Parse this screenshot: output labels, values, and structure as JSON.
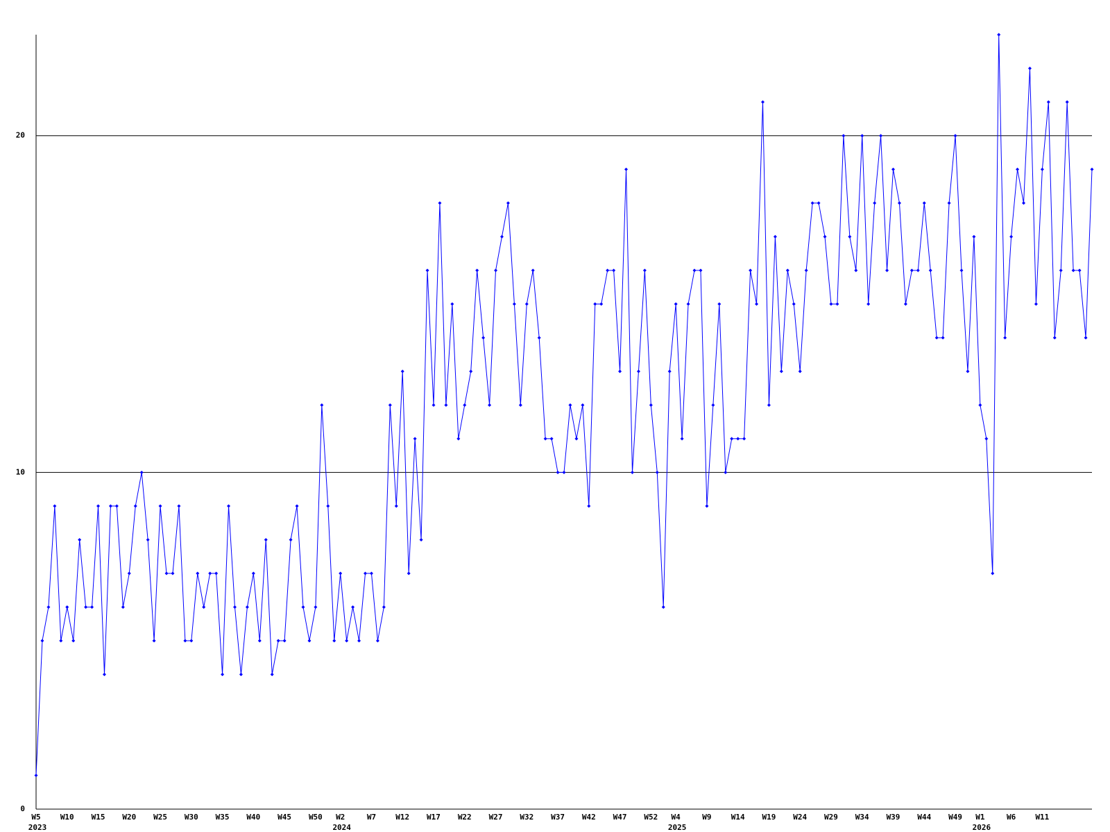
{
  "chart_data": {
    "type": "line",
    "color": "#0000ff",
    "grid": true,
    "ylim": [
      0,
      23
    ],
    "yticks": [
      0,
      10,
      20
    ],
    "categories": [
      "W5",
      null,
      null,
      null,
      null,
      "W10",
      null,
      null,
      null,
      null,
      "W15",
      null,
      null,
      null,
      null,
      "W20",
      null,
      null,
      null,
      null,
      "W25",
      null,
      null,
      null,
      null,
      "W30",
      null,
      null,
      null,
      null,
      "W35",
      null,
      null,
      null,
      null,
      "W40",
      null,
      null,
      null,
      null,
      "W45",
      null,
      null,
      null,
      null,
      "W50",
      null,
      null,
      null,
      "W2",
      null,
      null,
      null,
      null,
      "W7",
      null,
      null,
      null,
      null,
      "W12",
      null,
      null,
      null,
      null,
      "W17",
      null,
      null,
      null,
      null,
      "W22",
      null,
      null,
      null,
      null,
      "W27",
      null,
      null,
      null,
      null,
      "W32",
      null,
      null,
      null,
      null,
      "W37",
      null,
      null,
      null,
      null,
      "W42",
      null,
      null,
      null,
      null,
      "W47",
      null,
      null,
      null,
      null,
      "W52",
      null,
      null,
      null,
      "W4",
      null,
      null,
      null,
      null,
      "W9",
      null,
      null,
      null,
      null,
      "W14",
      null,
      null,
      null,
      null,
      "W19",
      null,
      null,
      null,
      null,
      "W24",
      null,
      null,
      null,
      null,
      "W29",
      null,
      null,
      null,
      null,
      "W34",
      null,
      null,
      null,
      null,
      "W39",
      null,
      null,
      null,
      null,
      "W44",
      null,
      null,
      null,
      null,
      "W49",
      null,
      null,
      null,
      "W1",
      null,
      null,
      null,
      null,
      "W6",
      null,
      null,
      null,
      null,
      "W11",
      null,
      null,
      null,
      null,
      null,
      null,
      null,
      null
    ],
    "year_labels": [
      "2023",
      null,
      null,
      null,
      null,
      null,
      null,
      null,
      null,
      null,
      null,
      null,
      null,
      null,
      null,
      null,
      null,
      null,
      null,
      null,
      null,
      null,
      null,
      null,
      null,
      null,
      null,
      null,
      null,
      null,
      null,
      null,
      null,
      null,
      null,
      null,
      null,
      null,
      null,
      null,
      null,
      null,
      null,
      null,
      null,
      null,
      null,
      null,
      null,
      "2024",
      null,
      null,
      null,
      null,
      null,
      null,
      null,
      null,
      null,
      null,
      null,
      null,
      null,
      null,
      null,
      null,
      null,
      null,
      null,
      null,
      null,
      null,
      null,
      null,
      null,
      null,
      null,
      null,
      null,
      null,
      null,
      null,
      null,
      null,
      null,
      null,
      null,
      null,
      null,
      null,
      null,
      null,
      null,
      null,
      null,
      null,
      null,
      null,
      null,
      null,
      null,
      null,
      null,
      "2025",
      null,
      null,
      null,
      null,
      null,
      null,
      null,
      null,
      null,
      null,
      null,
      null,
      null,
      null,
      null,
      null,
      null,
      null,
      null,
      null,
      null,
      null,
      null,
      null,
      null,
      null,
      null,
      null,
      null,
      null,
      null,
      null,
      null,
      null,
      null,
      null,
      null,
      null,
      null,
      null,
      null,
      null,
      null,
      null,
      null,
      null,
      null,
      null,
      "2026",
      null,
      null,
      null,
      null,
      null,
      null,
      null,
      null,
      null,
      null,
      null,
      null,
      null,
      null,
      null,
      null,
      null,
      null
    ],
    "values": [
      1,
      5,
      6,
      9,
      5,
      6,
      5,
      8,
      6,
      6,
      9,
      4,
      9,
      9,
      6,
      7,
      9,
      10,
      8,
      5,
      9,
      7,
      7,
      9,
      5,
      5,
      7,
      6,
      7,
      7,
      4,
      9,
      6,
      4,
      6,
      7,
      5,
      8,
      4,
      5,
      5,
      8,
      9,
      6,
      5,
      6,
      12,
      9,
      5,
      7,
      5,
      6,
      5,
      7,
      7,
      5,
      6,
      12,
      9,
      13,
      7,
      11,
      8,
      16,
      12,
      18,
      12,
      15,
      11,
      12,
      13,
      16,
      14,
      12,
      16,
      17,
      18,
      15,
      12,
      15,
      16,
      14,
      11,
      11,
      10,
      10,
      12,
      11,
      12,
      9,
      15,
      15,
      16,
      16,
      13,
      19,
      10,
      13,
      16,
      12,
      10,
      6,
      13,
      15,
      11,
      15,
      16,
      16,
      9,
      12,
      15,
      10,
      11,
      11,
      11,
      16,
      15,
      21,
      12,
      17,
      13,
      16,
      15,
      13,
      16,
      18,
      18,
      17,
      15,
      15,
      20,
      17,
      16,
      20,
      15,
      18,
      20,
      16,
      19,
      18,
      15,
      16,
      16,
      18,
      16,
      14,
      14,
      18,
      20,
      16,
      13,
      17,
      12,
      11,
      7,
      23,
      14,
      17,
      19,
      18,
      22,
      15,
      19,
      21,
      14,
      16,
      21,
      16,
      16,
      14,
      19
    ]
  }
}
